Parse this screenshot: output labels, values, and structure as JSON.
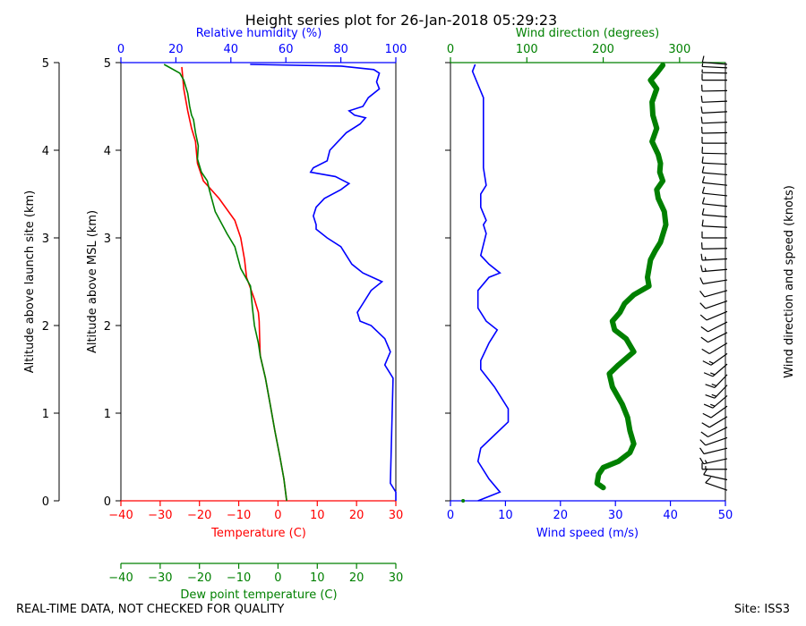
{
  "title": "Height series plot for 26-Jan-2018 05:29:23",
  "footer": {
    "left": "REAL-TIME DATA, NOT CHECKED FOR QUALITY",
    "right": "Site: ISS3"
  },
  "colors": {
    "temperature": "#ff0000",
    "dewpoint": "#008000",
    "humidity": "#0000ff",
    "wind_speed": "#0000ff",
    "wind_direction": "#008000",
    "barbs": "#000000"
  },
  "chart_data": [
    {
      "type": "line",
      "title": "Height series plot for 26-Jan-2018 05:29:23",
      "y_outer_label": "Altitude above launch site (km)",
      "ylabel": "Altitude above MSL (km)",
      "ylim": [
        0,
        5
      ],
      "yticks": [
        0,
        1,
        2,
        3,
        4,
        5
      ],
      "axes": {
        "temperature": {
          "label": "Temperature (C)",
          "xlim": [
            -40,
            30
          ],
          "ticks": [
            -40,
            -30,
            -20,
            -10,
            0,
            10,
            20,
            30
          ]
        },
        "dewpoint": {
          "label": "Dew point temperature (C)",
          "xlim": [
            -40,
            30
          ],
          "ticks": [
            -40,
            -30,
            -20,
            -10,
            0,
            10,
            20,
            30
          ]
        },
        "humidity": {
          "label": "Relative humidity (%)",
          "xlim": [
            0,
            100
          ],
          "ticks": [
            0,
            20,
            40,
            60,
            80,
            100
          ]
        }
      },
      "series": [
        {
          "key": "temperature",
          "points": [
            [
              2.2,
              0
            ],
            [
              1.5,
              0.25
            ],
            [
              0.5,
              0.5
            ],
            [
              -0.8,
              0.8
            ],
            [
              -2,
              1.1
            ],
            [
              -3.2,
              1.4
            ],
            [
              -4.5,
              1.65
            ],
            [
              -4.6,
              1.72
            ],
            [
              -4.8,
              2.05
            ],
            [
              -5,
              2.15
            ],
            [
              -6,
              2.3
            ],
            [
              -8,
              2.55
            ],
            [
              -8.5,
              2.75
            ],
            [
              -9.5,
              3
            ],
            [
              -11,
              3.2
            ],
            [
              -15,
              3.45
            ],
            [
              -19,
              3.65
            ],
            [
              -20.5,
              3.85
            ],
            [
              -21,
              4.1
            ],
            [
              -22,
              4.25
            ],
            [
              -23,
              4.45
            ],
            [
              -24,
              4.7
            ],
            [
              -24.5,
              4.95
            ]
          ]
        },
        {
          "key": "dewpoint",
          "points": [
            [
              2.2,
              0
            ],
            [
              1.5,
              0.25
            ],
            [
              0.5,
              0.5
            ],
            [
              -0.8,
              0.8
            ],
            [
              -2,
              1.1
            ],
            [
              -3.2,
              1.4
            ],
            [
              -4.5,
              1.65
            ],
            [
              -5,
              1.8
            ],
            [
              -6,
              2
            ],
            [
              -6.5,
              2.2
            ],
            [
              -7,
              2.45
            ],
            [
              -9.5,
              2.65
            ],
            [
              -11,
              2.9
            ],
            [
              -13,
              3.05
            ],
            [
              -16,
              3.3
            ],
            [
              -17.5,
              3.55
            ],
            [
              -18,
              3.65
            ],
            [
              -19.5,
              3.75
            ],
            [
              -20.5,
              3.9
            ],
            [
              -20.3,
              4.05
            ],
            [
              -21,
              4.2
            ],
            [
              -21.5,
              4.35
            ],
            [
              -22,
              4.4
            ],
            [
              -22.5,
              4.5
            ],
            [
              -23,
              4.65
            ],
            [
              -24,
              4.8
            ],
            [
              -25,
              4.88
            ],
            [
              -29,
              4.98
            ]
          ]
        },
        {
          "key": "humidity",
          "points": [
            [
              100,
              0
            ],
            [
              100,
              0.1
            ],
            [
              98,
              0.2
            ],
            [
              99,
              1.4
            ],
            [
              96,
              1.55
            ],
            [
              98,
              1.7
            ],
            [
              96,
              1.85
            ],
            [
              91,
              2
            ],
            [
              87,
              2.05
            ],
            [
              86,
              2.15
            ],
            [
              88,
              2.25
            ],
            [
              91,
              2.4
            ],
            [
              95,
              2.5
            ],
            [
              88,
              2.6
            ],
            [
              84,
              2.7
            ],
            [
              80,
              2.9
            ],
            [
              75,
              3
            ],
            [
              71,
              3.1
            ],
            [
              71,
              3.15
            ],
            [
              70,
              3.25
            ],
            [
              71,
              3.35
            ],
            [
              74,
              3.45
            ],
            [
              80,
              3.55
            ],
            [
              83,
              3.62
            ],
            [
              78,
              3.7
            ],
            [
              69,
              3.75
            ],
            [
              70,
              3.8
            ],
            [
              75,
              3.88
            ],
            [
              76,
              4
            ],
            [
              79,
              4.1
            ],
            [
              82,
              4.2
            ],
            [
              87,
              4.3
            ],
            [
              89,
              4.37
            ],
            [
              85,
              4.4
            ],
            [
              83,
              4.45
            ],
            [
              88,
              4.5
            ],
            [
              90,
              4.6
            ],
            [
              94,
              4.7
            ],
            [
              93,
              4.78
            ],
            [
              94,
              4.88
            ],
            [
              92,
              4.92
            ],
            [
              80,
              4.96
            ],
            [
              47,
              4.98
            ]
          ]
        }
      ]
    },
    {
      "type": "line",
      "ylim": [
        0,
        5
      ],
      "axes": {
        "wind_speed": {
          "label": "Wind speed (m/s)",
          "xlim": [
            0,
            50
          ],
          "ticks": [
            0,
            10,
            20,
            30,
            40,
            50
          ]
        },
        "wind_direction": {
          "label": "Wind direction (degrees)",
          "xlim": [
            0,
            360
          ],
          "ticks": [
            0,
            100,
            200,
            300
          ]
        },
        "barbs_label": "Wind direction and speed (knots)"
      },
      "series": [
        {
          "key": "wind_speed",
          "points": [
            [
              5,
              0
            ],
            [
              7,
              0.05
            ],
            [
              9,
              0.1
            ],
            [
              7,
              0.25
            ],
            [
              5,
              0.45
            ],
            [
              5.5,
              0.6
            ],
            [
              8,
              0.75
            ],
            [
              10.5,
              0.9
            ],
            [
              10.5,
              1.05
            ],
            [
              8,
              1.3
            ],
            [
              5.5,
              1.5
            ],
            [
              5.5,
              1.6
            ],
            [
              7,
              1.8
            ],
            [
              8.5,
              1.95
            ],
            [
              6.5,
              2.05
            ],
            [
              5,
              2.2
            ],
            [
              5,
              2.4
            ],
            [
              7,
              2.55
            ],
            [
              9,
              2.6
            ],
            [
              7,
              2.7
            ],
            [
              5.5,
              2.8
            ],
            [
              6.5,
              3.05
            ],
            [
              6,
              3.15
            ],
            [
              6.5,
              3.2
            ],
            [
              5.5,
              3.35
            ],
            [
              5.5,
              3.5
            ],
            [
              6.5,
              3.6
            ],
            [
              6,
              3.8
            ],
            [
              6,
              4.1
            ],
            [
              6,
              4.3
            ],
            [
              6,
              4.45
            ],
            [
              6,
              4.6
            ],
            [
              5,
              4.75
            ],
            [
              4,
              4.9
            ],
            [
              4.5,
              4.98
            ]
          ]
        },
        {
          "key": "wind_direction",
          "points": [
            [
              200,
              0.15
            ],
            [
              192,
              0.2
            ],
            [
              194,
              0.3
            ],
            [
              200,
              0.38
            ],
            [
              220,
              0.45
            ],
            [
              235,
              0.55
            ],
            [
              240,
              0.65
            ],
            [
              235,
              0.8
            ],
            [
              232,
              0.95
            ],
            [
              225,
              1.1
            ],
            [
              212,
              1.3
            ],
            [
              208,
              1.45
            ],
            [
              220,
              1.55
            ],
            [
              240,
              1.7
            ],
            [
              230,
              1.85
            ],
            [
              215,
              1.95
            ],
            [
              212,
              2.05
            ],
            [
              222,
              2.15
            ],
            [
              228,
              2.25
            ],
            [
              240,
              2.35
            ],
            [
              260,
              2.45
            ],
            [
              258,
              2.55
            ],
            [
              262,
              2.75
            ],
            [
              268,
              2.85
            ],
            [
              275,
              2.95
            ],
            [
              282,
              3.15
            ],
            [
              280,
              3.3
            ],
            [
              272,
              3.45
            ],
            [
              270,
              3.55
            ],
            [
              278,
              3.65
            ],
            [
              274,
              3.75
            ],
            [
              275,
              3.85
            ],
            [
              272,
              3.95
            ],
            [
              264,
              4.1
            ],
            [
              270,
              4.25
            ],
            [
              265,
              4.4
            ],
            [
              264,
              4.55
            ],
            [
              270,
              4.7
            ],
            [
              262,
              4.8
            ],
            [
              270,
              4.88
            ],
            [
              278,
              4.97
            ]
          ]
        },
        {
          "key": "barbs",
          "dir_deg": [
            300,
            290,
            270,
            250,
            248,
            240,
            230,
            225,
            220,
            215,
            210,
            210,
            215,
            220,
            225,
            230,
            230,
            235,
            240,
            245,
            255,
            262,
            265,
            268,
            270,
            275,
            278,
            280,
            280,
            280,
            278,
            275,
            272,
            270,
            268,
            266,
            265,
            266,
            268,
            270,
            272,
            275,
            278
          ],
          "speed_kt": [
            10,
            12,
            15,
            15,
            14,
            12,
            11,
            12,
            14,
            17,
            18,
            17,
            16,
            15,
            14,
            12,
            12,
            11,
            10,
            10,
            12,
            15,
            16,
            14,
            12,
            12,
            12,
            12,
            13,
            13,
            12,
            12,
            12,
            12,
            12,
            12,
            12,
            12,
            11,
            10,
            9,
            9,
            10
          ],
          "heights": [
            0.12,
            0.24,
            0.36,
            0.48,
            0.6,
            0.72,
            0.84,
            0.96,
            1.08,
            1.2,
            1.32,
            1.44,
            1.56,
            1.68,
            1.8,
            1.92,
            2.04,
            2.16,
            2.28,
            2.4,
            2.52,
            2.64,
            2.76,
            2.88,
            3.0,
            3.12,
            3.24,
            3.36,
            3.48,
            3.6,
            3.72,
            3.84,
            3.96,
            4.08,
            4.2,
            4.32,
            4.44,
            4.56,
            4.68,
            4.8,
            4.88,
            4.94,
            4.98
          ]
        }
      ]
    }
  ]
}
